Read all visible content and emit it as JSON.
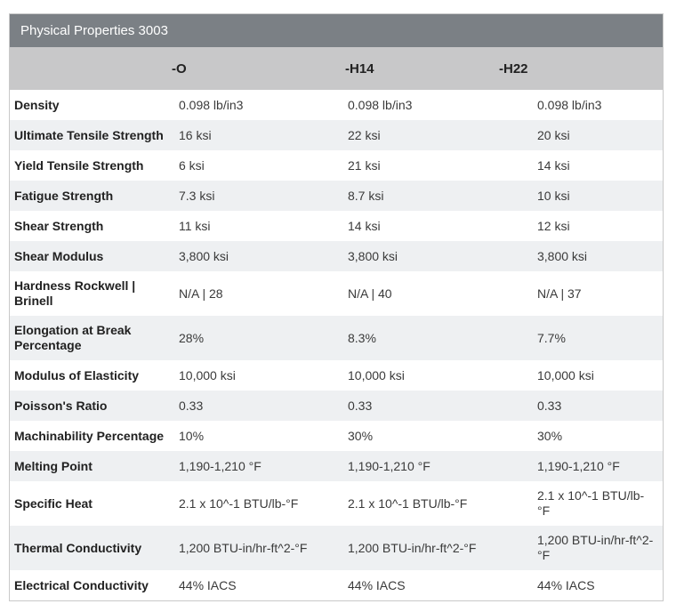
{
  "table": {
    "title": "Physical Properties 3003",
    "columns": [
      "",
      "-O",
      "-H14",
      "-H22"
    ],
    "rows": [
      {
        "label": "Density",
        "values": [
          "0.098 lb/in3",
          "0.098 lb/in3",
          "0.098 lb/in3"
        ]
      },
      {
        "label": "Ultimate Tensile Strength",
        "values": [
          "16 ksi",
          "22 ksi",
          "20 ksi"
        ]
      },
      {
        "label": "Yield Tensile Strength",
        "values": [
          "6 ksi",
          "21 ksi",
          "14 ksi"
        ]
      },
      {
        "label": "Fatigue Strength",
        "values": [
          "7.3 ksi",
          "8.7 ksi",
          "10 ksi"
        ]
      },
      {
        "label": "Shear Strength",
        "values": [
          "11 ksi",
          "14 ksi",
          "12 ksi"
        ]
      },
      {
        "label": "Shear Modulus",
        "values": [
          "3,800 ksi",
          "3,800 ksi",
          "3,800 ksi"
        ]
      },
      {
        "label": "Hardness Rockwell | Brinell",
        "values": [
          "N/A | 28",
          "N/A | 40",
          "N/A | 37"
        ]
      },
      {
        "label": "Elongation at Break Percentage",
        "values": [
          "28%",
          "8.3%",
          "7.7%"
        ]
      },
      {
        "label": "Modulus of Elasticity",
        "values": [
          "10,000 ksi",
          "10,000 ksi",
          "10,000 ksi"
        ]
      },
      {
        "label": "Poisson's Ratio",
        "values": [
          "0.33",
          "0.33",
          "0.33"
        ]
      },
      {
        "label": "Machinability Percentage",
        "values": [
          "10%",
          "30%",
          "30%"
        ]
      },
      {
        "label": "Melting Point",
        "values": [
          "1,190-1,210 °F",
          "1,190-1,210 °F",
          "1,190-1,210 °F"
        ]
      },
      {
        "label": "Specific Heat",
        "values": [
          "2.1 x 10^-1 BTU/lb-°F",
          "2.1 x 10^-1 BTU/lb-°F",
          "2.1 x 10^-1 BTU/lb-°F"
        ]
      },
      {
        "label": "Thermal Conductivity",
        "values": [
          "1,200 BTU-in/hr-ft^2-°F",
          "1,200 BTU-in/hr-ft^2-°F",
          "1,200 BTU-in/hr-ft^2-°F"
        ]
      },
      {
        "label": "Electrical Conductivity",
        "values": [
          "44% IACS",
          "44% IACS",
          "44% IACS"
        ]
      }
    ]
  },
  "colors": {
    "title_bar_bg": "#7b8085",
    "title_text": "#ffffff",
    "header_bg": "#c8c8c9",
    "row_alt_bg": "#eef0f2",
    "row_bg": "#ffffff",
    "border": "#c9c9c9",
    "label_text": "#212121",
    "value_text": "#3a3a3a"
  }
}
